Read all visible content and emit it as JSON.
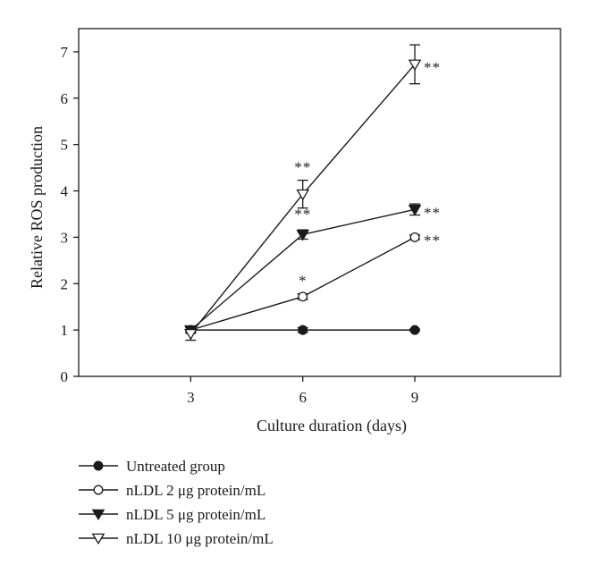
{
  "chart_data": {
    "type": "line",
    "xlabel": "Culture duration (days)",
    "ylabel": "Relative ROS production",
    "x": [
      3,
      6,
      9
    ],
    "xlim": [
      0,
      12.9
    ],
    "ylim": [
      0,
      7.5
    ],
    "xticks": [
      3,
      6,
      9
    ],
    "yticks": [
      0,
      1,
      2,
      3,
      4,
      5,
      6,
      7
    ],
    "grid": false,
    "legend_position": "bottom-left",
    "series": [
      {
        "name": "Untreated group",
        "marker": "circle-filled",
        "values": [
          1.0,
          1.0,
          1.0
        ],
        "errors": [
          0.05,
          0.05,
          0.02
        ],
        "significance": [
          "",
          "",
          ""
        ]
      },
      {
        "name": "nLDL 2 μg protein/mL",
        "marker": "circle-open",
        "values": [
          1.0,
          1.72,
          3.0
        ],
        "errors": [
          0.05,
          0.06,
          0.05
        ],
        "significance": [
          "",
          "*",
          "**"
        ]
      },
      {
        "name": "nLDL 5 μg protein/mL",
        "marker": "triangle-down-filled",
        "values": [
          1.0,
          3.06,
          3.6
        ],
        "errors": [
          0.07,
          0.1,
          0.12
        ],
        "significance": [
          "",
          "**",
          "**"
        ]
      },
      {
        "name": "nLDL 10 μg protein/mL",
        "marker": "triangle-down-open",
        "values": [
          0.92,
          3.93,
          6.73
        ],
        "errors": [
          0.14,
          0.3,
          0.42
        ],
        "significance": [
          "",
          "**",
          "**"
        ]
      }
    ]
  }
}
